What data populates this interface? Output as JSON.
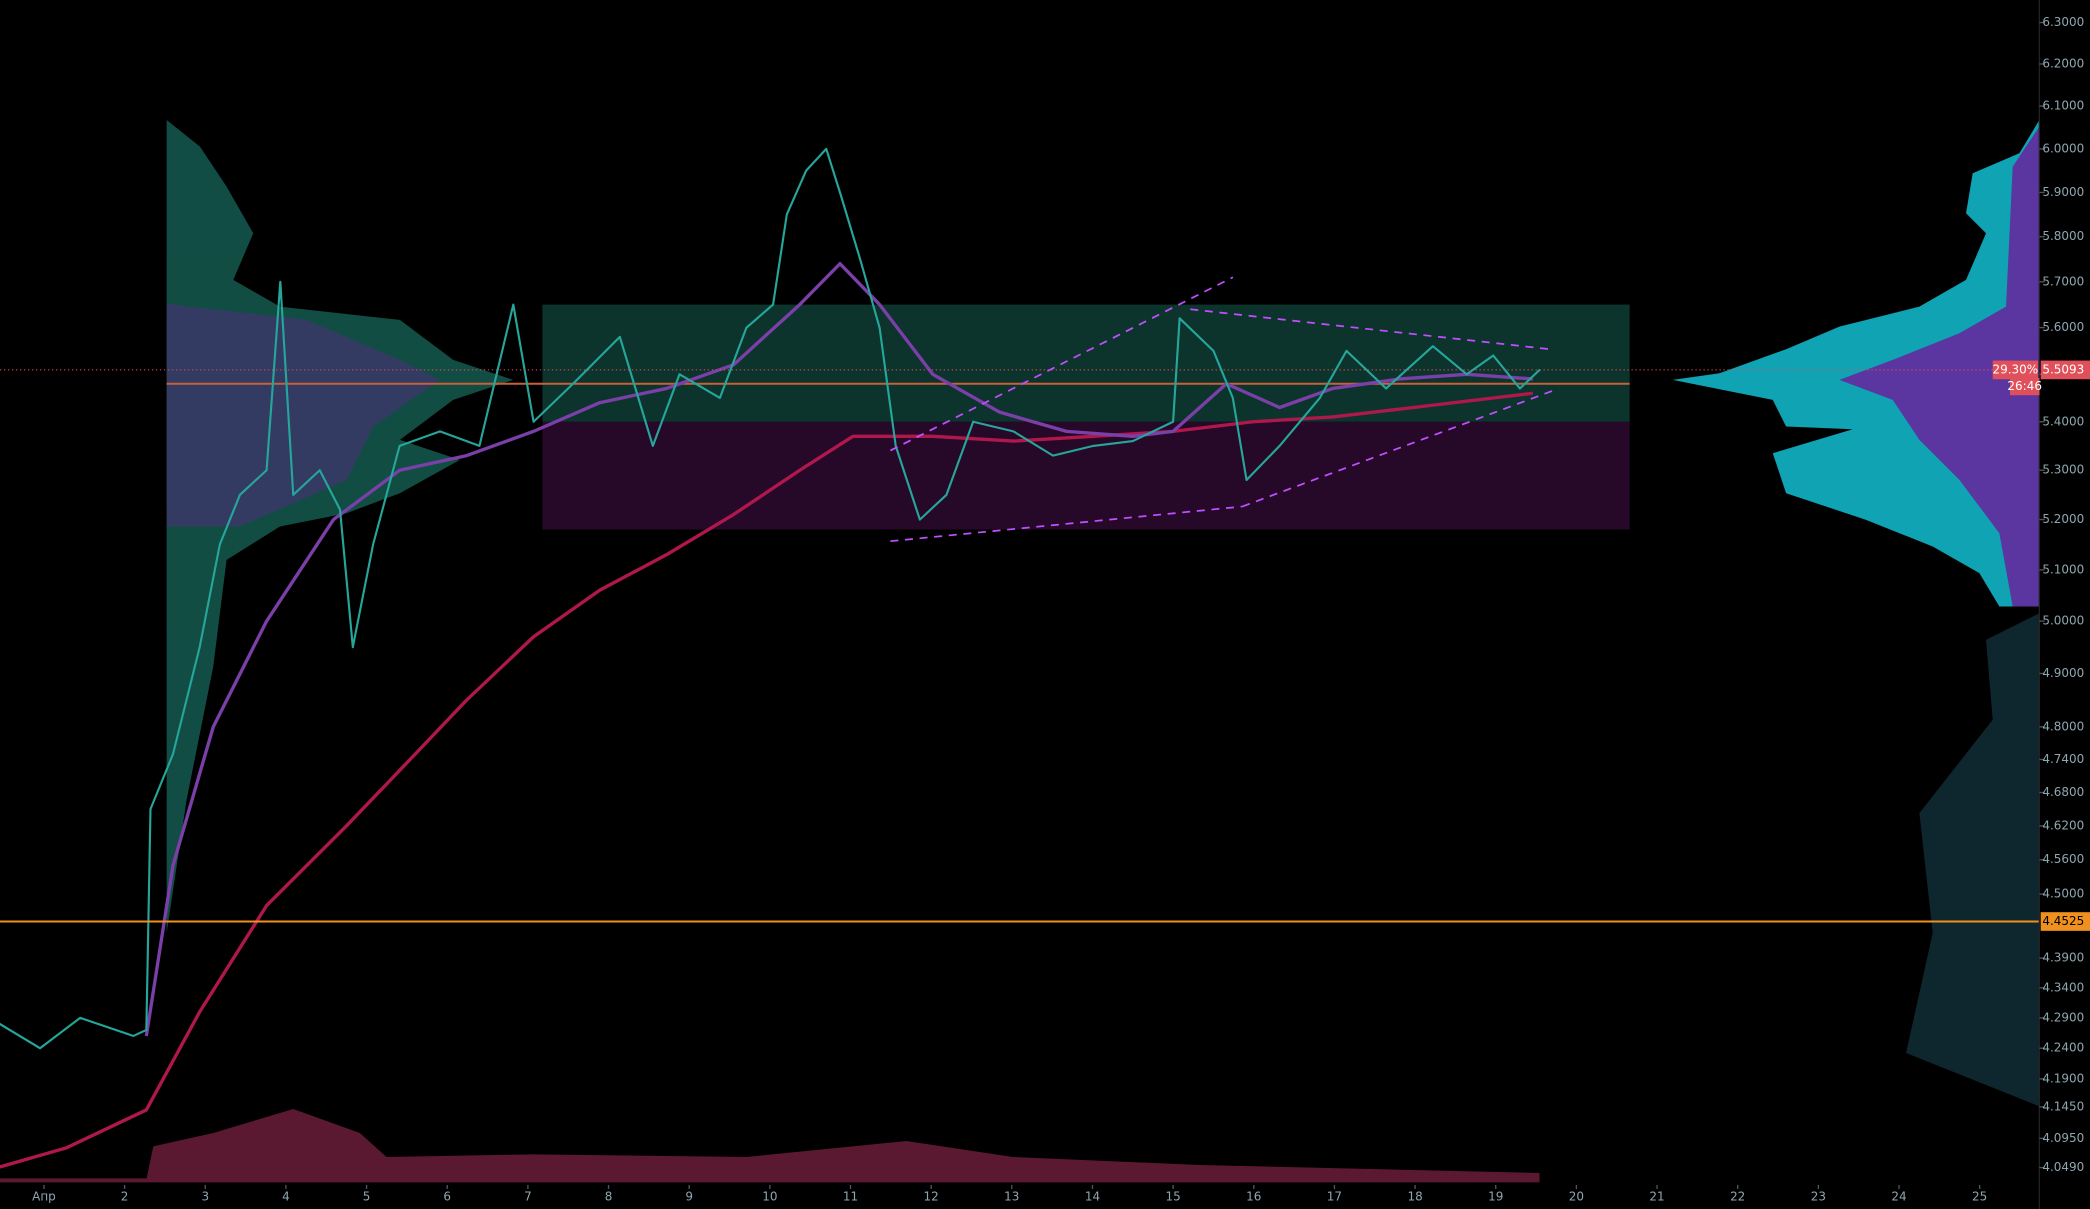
{
  "chart_data": {
    "type": "line",
    "log_scale": true,
    "xlim": [
      0.455,
      25.74
    ],
    "ylim": [
      4.026,
      6.355
    ],
    "xticks": [
      {
        "value": 1,
        "label": "Апр"
      },
      2,
      3,
      4,
      5,
      6,
      7,
      8,
      9,
      10,
      11,
      12,
      13,
      14,
      15,
      16,
      17,
      18,
      19,
      20,
      21,
      22,
      23,
      24,
      25
    ],
    "yticks": [
      {
        "value": 6.3,
        "label": "6.3000"
      },
      {
        "value": 6.2,
        "label": "6.2000"
      },
      {
        "value": 6.1,
        "label": "6.1000"
      },
      {
        "value": 6.0,
        "label": "6.0000"
      },
      {
        "value": 5.9,
        "label": "5.9000"
      },
      {
        "value": 5.8,
        "label": "5.8000"
      },
      {
        "value": 5.7,
        "label": "5.7000"
      },
      {
        "value": 5.6,
        "label": "5.6000"
      },
      {
        "value": 5.5,
        "label": "5.5000"
      },
      {
        "value": 5.4,
        "label": "5.4000"
      },
      {
        "value": 5.3,
        "label": "5.3000"
      },
      {
        "value": 5.2,
        "label": "5.2000"
      },
      {
        "value": 5.1,
        "label": "5.1000"
      },
      {
        "value": 5.0,
        "label": "5.0000"
      },
      {
        "value": 4.9,
        "label": "4.9000"
      },
      {
        "value": 4.8,
        "label": "4.8000"
      },
      {
        "value": 4.74,
        "label": "4.7400"
      },
      {
        "value": 4.68,
        "label": "4.6800"
      },
      {
        "value": 4.62,
        "label": "4.6200"
      },
      {
        "value": 4.56,
        "label": "4.5600"
      },
      {
        "value": 4.5,
        "label": "4.5000"
      },
      {
        "value": 4.39,
        "label": "4.3900"
      },
      {
        "value": 4.34,
        "label": "4.3400"
      },
      {
        "value": 4.29,
        "label": "4.2900"
      },
      {
        "value": 4.24,
        "label": "4.2400"
      },
      {
        "value": 4.19,
        "label": "4.1900"
      },
      {
        "value": 4.145,
        "label": "4.1450"
      },
      {
        "value": 4.095,
        "label": "4.0950"
      },
      {
        "value": 4.049,
        "label": "4.0490"
      }
    ],
    "series": [
      {
        "color": "#26a69a",
        "width": 1.6,
        "x": [
          0.45,
          0.95,
          1.45,
          2.11,
          2.27,
          2.32,
          2.6,
          2.93,
          3.18,
          3.43,
          3.76,
          3.93,
          4.09,
          4.42,
          4.67,
          4.83,
          5.08,
          5.41,
          5.91,
          6.4,
          6.82,
          7.07,
          7.56,
          8.14,
          8.55,
          8.88,
          9.38,
          9.71,
          10.04,
          10.21,
          10.45,
          10.7,
          10.87,
          11.12,
          11.36,
          11.56,
          11.86,
          12.19,
          12.52,
          13.02,
          13.51,
          14.01,
          14.5,
          15.0,
          15.08,
          15.5,
          15.74,
          15.91,
          16.32,
          16.82,
          17.15,
          17.64,
          18.22,
          18.64,
          18.97,
          19.3,
          19.55
        ],
        "values": [
          4.28,
          4.24,
          4.29,
          4.26,
          4.27,
          4.65,
          4.75,
          4.95,
          5.15,
          5.25,
          5.3,
          5.7,
          5.25,
          5.3,
          5.22,
          4.95,
          5.15,
          5.35,
          5.38,
          5.35,
          5.65,
          5.4,
          5.48,
          5.58,
          5.35,
          5.5,
          5.45,
          5.6,
          5.65,
          5.85,
          5.95,
          6.0,
          5.9,
          5.75,
          5.6,
          5.35,
          5.2,
          5.25,
          5.4,
          5.38,
          5.33,
          5.35,
          5.36,
          5.4,
          5.62,
          5.55,
          5.45,
          5.28,
          5.35,
          5.45,
          5.55,
          5.47,
          5.56,
          5.5,
          5.54,
          5.47,
          5.51
        ]
      },
      {
        "color": "#7b3fa8",
        "width": 2.5,
        "x": [
          2.27,
          2.6,
          3.1,
          3.76,
          4.59,
          5.41,
          6.24,
          7.07,
          7.89,
          8.72,
          9.55,
          10.37,
          10.87,
          11.36,
          12.02,
          12.85,
          13.68,
          14.5,
          15.0,
          15.66,
          16.32,
          16.98,
          17.81,
          18.64,
          19.46
        ],
        "values": [
          4.26,
          4.55,
          4.8,
          5.0,
          5.2,
          5.3,
          5.33,
          5.38,
          5.44,
          5.47,
          5.52,
          5.65,
          5.74,
          5.65,
          5.5,
          5.42,
          5.38,
          5.37,
          5.38,
          5.48,
          5.43,
          5.47,
          5.49,
          5.5,
          5.49
        ]
      },
      {
        "color": "#b0184c",
        "width": 2.5,
        "x": [
          0.45,
          1.28,
          2.27,
          2.93,
          3.76,
          4.75,
          5.41,
          6.24,
          7.07,
          7.89,
          8.72,
          9.55,
          10.37,
          11.03,
          12.02,
          13.02,
          14.01,
          15.0,
          15.99,
          16.98,
          17.98,
          19.46
        ],
        "values": [
          4.05,
          4.08,
          4.14,
          4.3,
          4.48,
          4.62,
          4.72,
          4.85,
          4.97,
          5.06,
          5.13,
          5.21,
          5.3,
          5.37,
          5.37,
          5.36,
          5.37,
          5.38,
          5.4,
          5.41,
          5.43,
          5.46
        ]
      }
    ],
    "zones": [
      {
        "from": 7.18,
        "to": 20.66,
        "low": 5.4,
        "high": 5.65,
        "color": "#0d3a32"
      },
      {
        "from": 7.18,
        "to": 20.66,
        "low": 5.18,
        "high": 5.4,
        "color": "#2a0a2e"
      }
    ],
    "poc": {
      "from": 2.52,
      "to": 20.66,
      "value": 5.48,
      "color": "#c8603a"
    },
    "price_tag": {
      "value": 5.5093,
      "change": "29.30%",
      "timer": "26:46",
      "color": "#e0505a"
    },
    "level": {
      "value": 4.4525,
      "color": "#f0901e"
    }
  }
}
